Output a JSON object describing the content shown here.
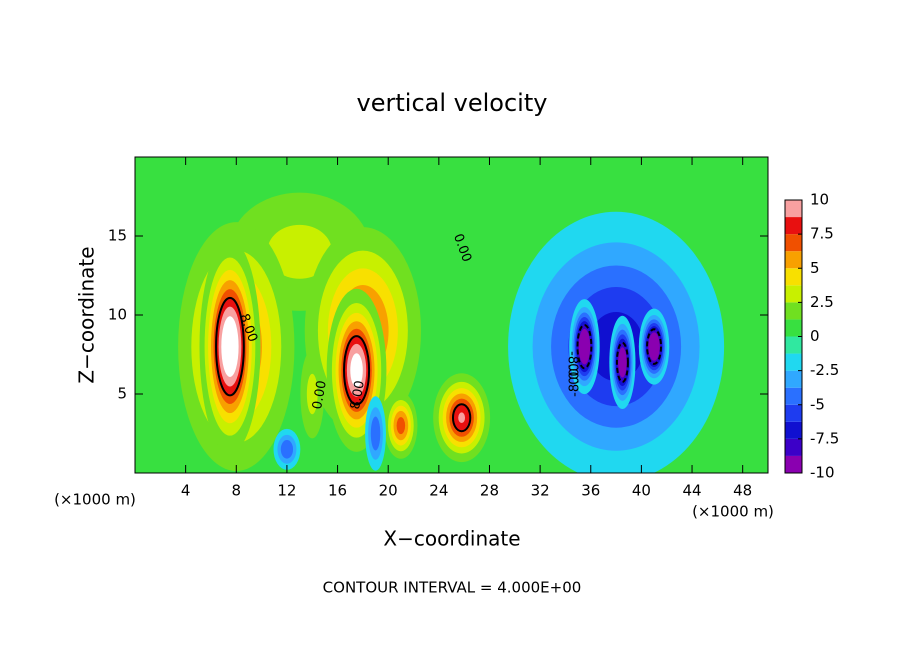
{
  "chart_data": {
    "type": "contour",
    "title": "vertical velocity",
    "xlabel": "X−coordinate",
    "ylabel": "Z−coordinate",
    "x_unit_left": "(×1000 m)",
    "x_unit_right": "(×1000 m)",
    "footer": "CONTOUR INTERVAL = 4.000E+00",
    "xlim": [
      0,
      50
    ],
    "xticks": [
      4,
      8,
      12,
      16,
      20,
      24,
      28,
      32,
      36,
      40,
      44,
      48
    ],
    "ylim": [
      0,
      20
    ],
    "yticks": [
      5,
      10,
      15
    ],
    "colorbar": {
      "lim": [
        -10,
        10
      ],
      "ticks": [
        10,
        7.5,
        5,
        2.5,
        0,
        -2.5,
        -5,
        -7.5,
        -10
      ],
      "colors": [
        "#8a00b0",
        "#3c00c8",
        "#1010d0",
        "#1e3cf0",
        "#2a70ff",
        "#30a8ff",
        "#20d8f0",
        "#30e8a0",
        "#38e040",
        "#70e020",
        "#c8f000",
        "#f8e000",
        "#f8a000",
        "#f05000",
        "#e81010",
        "#f8a0a0"
      ],
      "over_color": "#ffffff"
    },
    "contour_labels": [
      "0.00",
      "0.00",
      "8.00",
      "8.00",
      "-8.00",
      "-8.00"
    ],
    "peaks": [
      {
        "x": 13,
        "z": 14,
        "value": 3,
        "rx": 6,
        "rz": 4
      },
      {
        "x": 8,
        "z": 8,
        "value": 7,
        "rx": 3.5,
        "rz": 6
      },
      {
        "x": 18,
        "z": 9,
        "value": 7,
        "rx": 3.5,
        "rz": 5
      },
      {
        "x": 38,
        "z": 8,
        "value": -7,
        "rx": 6.5,
        "rz": 6.5
      },
      {
        "x": 7.5,
        "z": 8,
        "value": 12,
        "rx": 1.6,
        "rz": 4.5
      },
      {
        "x": 17.5,
        "z": 6.5,
        "value": 11,
        "rx": 1.6,
        "rz": 3.5
      },
      {
        "x": 25.8,
        "z": 3.5,
        "value": 9,
        "rx": 1.6,
        "rz": 2
      },
      {
        "x": 21,
        "z": 3,
        "value": 7,
        "rx": 1,
        "rz": 1.6
      },
      {
        "x": 14,
        "z": 5,
        "value": 3,
        "rx": 1,
        "rz": 3
      },
      {
        "x": 35.5,
        "z": 8,
        "value": -12,
        "rx": 0.8,
        "rz": 2
      },
      {
        "x": 41,
        "z": 8,
        "value": -12,
        "rx": 0.8,
        "rz": 1.6
      },
      {
        "x": 38.5,
        "z": 7,
        "value": -11,
        "rx": 0.7,
        "rz": 2
      },
      {
        "x": 12,
        "z": 1.5,
        "value": -5,
        "rx": 0.9,
        "rz": 1.1
      },
      {
        "x": 19,
        "z": 2.5,
        "value": -5,
        "rx": 0.7,
        "rz": 2
      }
    ]
  }
}
